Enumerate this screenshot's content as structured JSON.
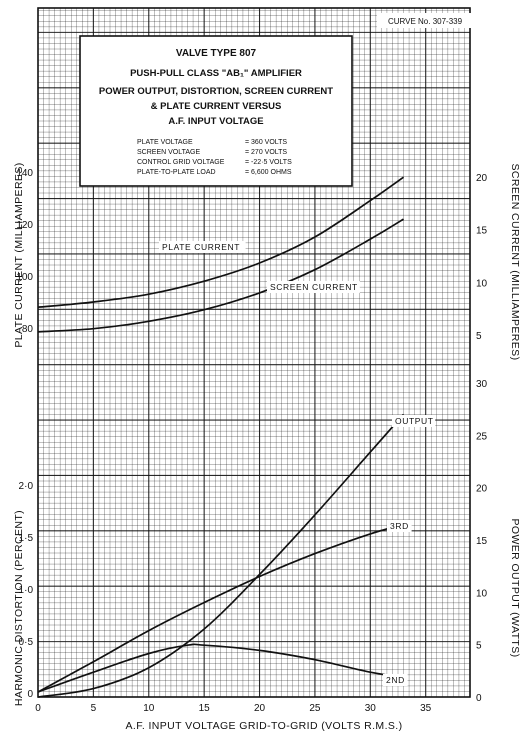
{
  "chart_data": {
    "type": "line",
    "curve_no": "CURVE No. 307-339",
    "title_lines": [
      "VALVE TYPE 807",
      "PUSH-PULL CLASS \"AB₁\" AMPLIFIER",
      "POWER OUTPUT, DISTORTION, SCREEN CURRENT",
      "& PLATE CURRENT VERSUS",
      "A.F. INPUT VOLTAGE"
    ],
    "conditions": [
      {
        "label": "PLATE VOLTAGE",
        "value": "= 360 VOLTS"
      },
      {
        "label": "SCREEN VOLTAGE",
        "value": "= 270 VOLTS"
      },
      {
        "label": "CONTROL GRID VOLTAGE",
        "value": "= -22·5 VOLTS"
      },
      {
        "label": "PLATE-TO-PLATE LOAD",
        "value": "= 6,600 OHMS"
      }
    ],
    "xlabel": "A.F. INPUT VOLTAGE GRID-TO-GRID (VOLTS R.M.S.)",
    "x_ticks": [
      "0",
      "5",
      "10",
      "15",
      "20",
      "25",
      "30",
      "35"
    ],
    "xlim": [
      0,
      39
    ],
    "axes": {
      "plate_current": {
        "label": "PLATE CURRENT (MILLIAMPERES)",
        "ticks": [
          "80",
          "100",
          "120",
          "140"
        ],
        "range": [
          80,
          140
        ]
      },
      "screen_current": {
        "label": "SCREEN CURRENT (MILLIAMPERES)",
        "ticks": [
          "5",
          "10",
          "15",
          "20"
        ],
        "range": [
          5,
          20
        ]
      },
      "harmonic_distortion": {
        "label": "HARMONIC DISTORTION (PERCENT)",
        "ticks": [
          "0",
          "0·5",
          "1·0",
          "1·5",
          "2·0"
        ],
        "range": [
          0,
          2
        ]
      },
      "power_output": {
        "label": "POWER OUTPUT (WATTS)",
        "ticks": [
          "0",
          "5",
          "10",
          "15",
          "20",
          "25",
          "30"
        ],
        "range": [
          0,
          30
        ]
      }
    },
    "series": [
      {
        "name": "PLATE CURRENT",
        "axis": "plate_current",
        "x": [
          0,
          5,
          10,
          15,
          20,
          25,
          30,
          33
        ],
        "y": [
          88,
          90,
          93,
          98,
          105,
          115,
          129,
          138
        ]
      },
      {
        "name": "SCREEN CURRENT",
        "axis": "screen_current",
        "x": [
          0,
          5,
          10,
          15,
          20,
          25,
          30,
          33
        ],
        "y": [
          5.3,
          5.6,
          6.3,
          7.4,
          9.0,
          11.2,
          14.1,
          16.0
        ]
      },
      {
        "name": "OUTPUT",
        "axis": "power_output",
        "x": [
          0,
          5,
          10,
          15,
          20,
          25,
          30,
          33
        ],
        "y": [
          0,
          0.8,
          2.8,
          6.5,
          11.7,
          17.4,
          23.4,
          27.0
        ]
      },
      {
        "name": "3RD",
        "axis": "harmonic_distortion",
        "x": [
          0,
          5,
          10,
          15,
          20,
          25,
          30,
          33
        ],
        "y": [
          0.01,
          0.3,
          0.6,
          0.87,
          1.12,
          1.34,
          1.53,
          1.62
        ]
      },
      {
        "name": "2ND",
        "axis": "harmonic_distortion",
        "x": [
          0,
          5,
          10,
          13.5,
          15,
          20,
          25,
          30,
          33
        ],
        "y": [
          0.01,
          0.2,
          0.38,
          0.46,
          0.46,
          0.41,
          0.32,
          0.2,
          0.15
        ]
      }
    ],
    "grid": true,
    "colors": {
      "ink": "#111111",
      "paper": "#ffffff"
    }
  }
}
